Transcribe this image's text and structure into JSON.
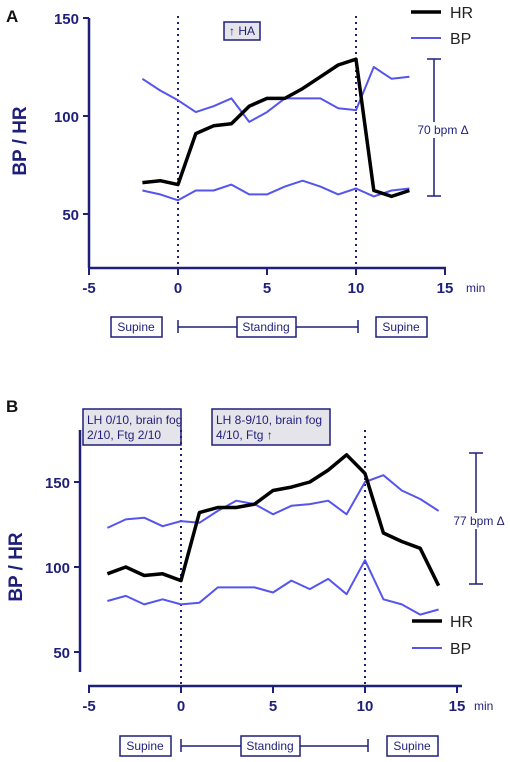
{
  "chart_data": [
    {
      "panel_label": "A",
      "type": "line",
      "ylabel": "BP / HR",
      "x_unit": "min",
      "xlim": [
        -6,
        15
      ],
      "ylim": [
        45,
        150
      ],
      "xticks": [
        "-5",
        "0",
        "5",
        "10",
        "15"
      ],
      "yticks": [
        "150",
        "100",
        "50"
      ],
      "legend": [
        "HR",
        "BP"
      ],
      "series": [
        {
          "name": "HR",
          "color": "#000000",
          "x": [
            -2,
            -1,
            0,
            1,
            2,
            3,
            4,
            5,
            6,
            7,
            8,
            9,
            10,
            11,
            12,
            13
          ],
          "y": [
            66,
            67,
            65,
            91,
            95,
            96,
            105,
            109,
            109,
            114,
            120,
            126,
            129,
            62,
            59,
            62
          ]
        },
        {
          "name": "BP",
          "color": "#5555ee",
          "x": [
            -2,
            -1,
            0,
            1,
            2,
            3,
            4,
            5,
            6,
            7,
            8,
            9,
            10,
            11,
            12,
            13
          ],
          "y": [
            119,
            113,
            108,
            102,
            105,
            109,
            97,
            102,
            109,
            109,
            109,
            104,
            103,
            125,
            119,
            120
          ]
        },
        {
          "name": "BP",
          "color": "#5555ee",
          "x": [
            -2,
            -1,
            0,
            1,
            2,
            3,
            4,
            5,
            6,
            7,
            8,
            9,
            10,
            11,
            12,
            13
          ],
          "y": [
            62,
            60,
            57,
            62,
            62,
            65,
            60,
            60,
            64,
            67,
            64,
            60,
            63,
            59,
            62,
            63
          ]
        }
      ],
      "vlines": [
        0,
        10
      ],
      "annotations": [
        {
          "text": "↑ HA",
          "x": 3.5,
          "y": 145
        }
      ],
      "delta_label": "70 bpm Δ",
      "delta_range": [
        59,
        129
      ],
      "positions": {
        "left": "Supine",
        "middle": "Standing",
        "right": "Supine"
      }
    },
    {
      "panel_label": "B",
      "type": "line",
      "ylabel": "BP / HR",
      "x_unit": "min",
      "xlim": [
        -5,
        15
      ],
      "ylim": [
        45,
        175
      ],
      "xticks": [
        "-5",
        "0",
        "5",
        "10",
        "15"
      ],
      "yticks": [
        "150",
        "100",
        "50"
      ],
      "legend": [
        "HR",
        "BP"
      ],
      "series": [
        {
          "name": "HR",
          "color": "#000000",
          "x": [
            -4,
            -3,
            -2,
            -1,
            0,
            1,
            2,
            3,
            4,
            5,
            6,
            7,
            8,
            9,
            10,
            11,
            12,
            13,
            14
          ],
          "y": [
            96,
            100,
            95,
            96,
            92,
            132,
            135,
            135,
            137,
            145,
            147,
            150,
            157,
            166,
            155,
            120,
            115,
            111,
            89
          ]
        },
        {
          "name": "BP",
          "color": "#5555ee",
          "x": [
            -4,
            -3,
            -2,
            -1,
            0,
            1,
            2,
            3,
            4,
            5,
            6,
            7,
            8,
            9,
            10,
            11,
            12,
            13,
            14
          ],
          "y": [
            123,
            128,
            129,
            124,
            127,
            126,
            133,
            139,
            137,
            131,
            136,
            137,
            139,
            131,
            150,
            154,
            145,
            140,
            133
          ]
        },
        {
          "name": "BP",
          "color": "#5555ee",
          "x": [
            -4,
            -3,
            -2,
            -1,
            0,
            1,
            2,
            3,
            4,
            5,
            6,
            7,
            8,
            9,
            10,
            11,
            12,
            13,
            14
          ],
          "y": [
            80,
            83,
            78,
            81,
            78,
            79,
            88,
            88,
            88,
            85,
            92,
            87,
            93,
            84,
            104,
            81,
            78,
            72,
            75
          ]
        }
      ],
      "vlines": [
        0,
        10
      ],
      "annotations": [
        {
          "text_lines": [
            "LH 0/10, brain fog",
            "2/10, Ftg 2/10"
          ],
          "x": -2
        },
        {
          "text_lines": [
            "LH 8-9/10, brain fog",
            "4/10, Ftg ↑"
          ],
          "x": 5
        }
      ],
      "delta_label": "77 bpm Δ",
      "delta_range": [
        89,
        166
      ],
      "positions": {
        "left": "Supine",
        "middle": "Standing",
        "right": "Supine"
      }
    }
  ]
}
